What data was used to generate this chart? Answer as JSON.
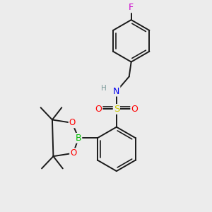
{
  "background_color": "#ececec",
  "bond_color": "#1a1a1a",
  "bond_width": 1.4,
  "atom_colors": {
    "F": "#cc00cc",
    "O": "#ff0000",
    "N": "#0000ee",
    "B": "#00bb00",
    "S": "#cccc00",
    "H": "#7a9a9a"
  },
  "bg": "#ececec"
}
